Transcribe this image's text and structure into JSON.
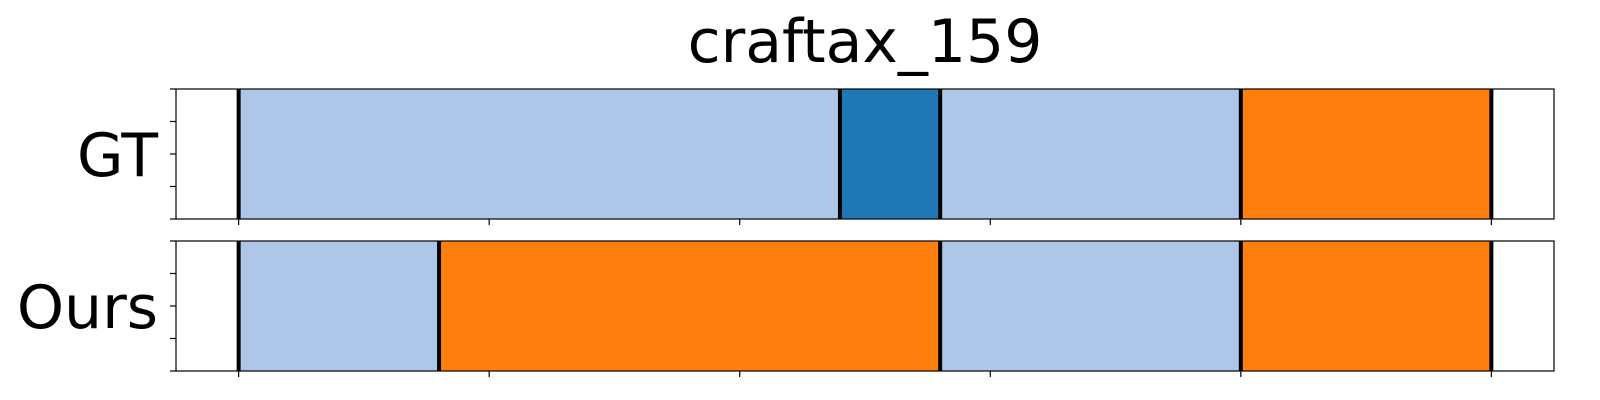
{
  "chart_data": {
    "type": "bar",
    "title": "craftax_159",
    "xlim": [
      -0.25,
      5.25
    ],
    "xticks": [
      0,
      1,
      2,
      3,
      4,
      5
    ],
    "tick_labels_shown": false,
    "grid": false,
    "rows": [
      {
        "label": "GT",
        "segments": [
          {
            "start": 0.0,
            "end": 2.4,
            "color": "#aec7e8"
          },
          {
            "start": 2.4,
            "end": 2.8,
            "color": "#1f77b4"
          },
          {
            "start": 2.8,
            "end": 4.0,
            "color": "#aec7e8"
          },
          {
            "start": 4.0,
            "end": 5.0,
            "color": "#ff7f0e"
          }
        ]
      },
      {
        "label": "Ours",
        "segments": [
          {
            "start": 0.0,
            "end": 0.8,
            "color": "#aec7e8"
          },
          {
            "start": 0.8,
            "end": 2.8,
            "color": "#ff7f0e"
          },
          {
            "start": 2.8,
            "end": 4.0,
            "color": "#aec7e8"
          },
          {
            "start": 4.0,
            "end": 5.0,
            "color": "#ff7f0e"
          }
        ]
      }
    ]
  }
}
